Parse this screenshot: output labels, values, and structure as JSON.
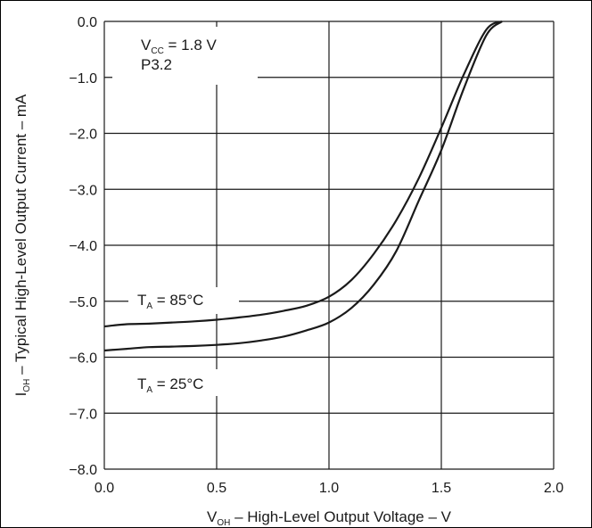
{
  "chart_data": {
    "type": "line",
    "xlabel": {
      "main": "V",
      "sub": "OH",
      "rest": " – High-Level Output Voltage – V"
    },
    "ylabel": {
      "main": "I",
      "sub": "OH",
      "rest": " – Typical High-Level Output Current – mA"
    },
    "xlim": [
      0.0,
      2.0
    ],
    "ylim": [
      -8.0,
      0.0
    ],
    "x_ticks": [
      0.0,
      0.5,
      1.0,
      1.5,
      2.0
    ],
    "x_tick_labels": [
      "0.0",
      "0.5",
      "1.0",
      "1.5",
      "2.0"
    ],
    "y_ticks": [
      0,
      -1,
      -2,
      -3,
      -4,
      -5,
      -6,
      -7,
      -8
    ],
    "y_tick_labels": [
      "0.0",
      "−1.0",
      "−2.0",
      "−3.0",
      "−4.0",
      "−5.0",
      "−6.0",
      "−7.0",
      "−8.0"
    ],
    "grid": true,
    "annotations": {
      "vcc": {
        "main": "V",
        "sub": "CC",
        "rest": " = 1.8 V"
      },
      "pin": "P3.2"
    },
    "series": [
      {
        "label": {
          "main": "T",
          "sub": "A",
          "rest": " = 85°C"
        },
        "x": [
          0.0,
          0.1,
          0.2,
          0.3,
          0.4,
          0.5,
          0.6,
          0.7,
          0.8,
          0.9,
          1.0,
          1.1,
          1.2,
          1.3,
          1.4,
          1.5,
          1.6,
          1.7,
          1.77
        ],
        "y": [
          -5.45,
          -5.41,
          -5.4,
          -5.38,
          -5.36,
          -5.33,
          -5.29,
          -5.24,
          -5.17,
          -5.08,
          -4.92,
          -4.62,
          -4.15,
          -3.55,
          -2.8,
          -1.9,
          -0.95,
          -0.15,
          0.0
        ]
      },
      {
        "label": {
          "main": "T",
          "sub": "A",
          "rest": " = 25°C"
        },
        "x": [
          0.0,
          0.1,
          0.2,
          0.3,
          0.4,
          0.5,
          0.6,
          0.7,
          0.8,
          0.9,
          1.0,
          1.1,
          1.2,
          1.3,
          1.4,
          1.5,
          1.6,
          1.7,
          1.77
        ],
        "y": [
          -5.88,
          -5.85,
          -5.82,
          -5.81,
          -5.8,
          -5.78,
          -5.75,
          -5.7,
          -5.63,
          -5.52,
          -5.38,
          -5.12,
          -4.7,
          -4.1,
          -3.2,
          -2.3,
          -1.2,
          -0.25,
          0.0
        ]
      }
    ],
    "line_color": "#1a1a1a",
    "grid_color": "#1a1a1a"
  }
}
